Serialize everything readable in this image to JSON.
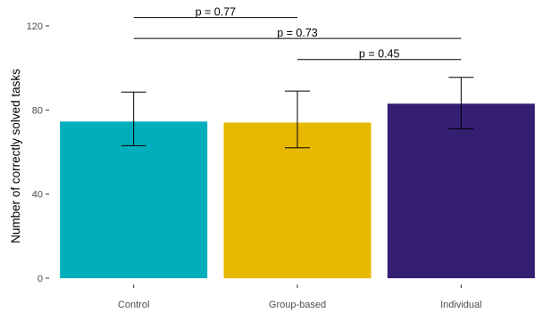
{
  "chart_data": {
    "type": "bar",
    "title": "",
    "xlabel": "",
    "ylabel": "Number of correctly solved tasks",
    "ylim": [
      0,
      125
    ],
    "yticks": [
      0,
      40,
      80,
      120
    ],
    "grid": false,
    "categories": [
      "Control",
      "Group-based",
      "Individual"
    ],
    "values": [
      74.5,
      74,
      83
    ],
    "error_bars": [
      {
        "low": 63,
        "high": 88.5
      },
      {
        "low": 62,
        "high": 89
      },
      {
        "low": 71,
        "high": 95.5
      }
    ],
    "colors": [
      "#00AFBB",
      "#E7B800",
      "#341F73"
    ],
    "significance": [
      {
        "from": 0,
        "to": 1,
        "y": 124,
        "label": "p = 0.77"
      },
      {
        "from": 0,
        "to": 2,
        "y": 114,
        "label": "p = 0.73"
      },
      {
        "from": 1,
        "to": 2,
        "y": 104,
        "label": "p = 0.45"
      }
    ]
  }
}
